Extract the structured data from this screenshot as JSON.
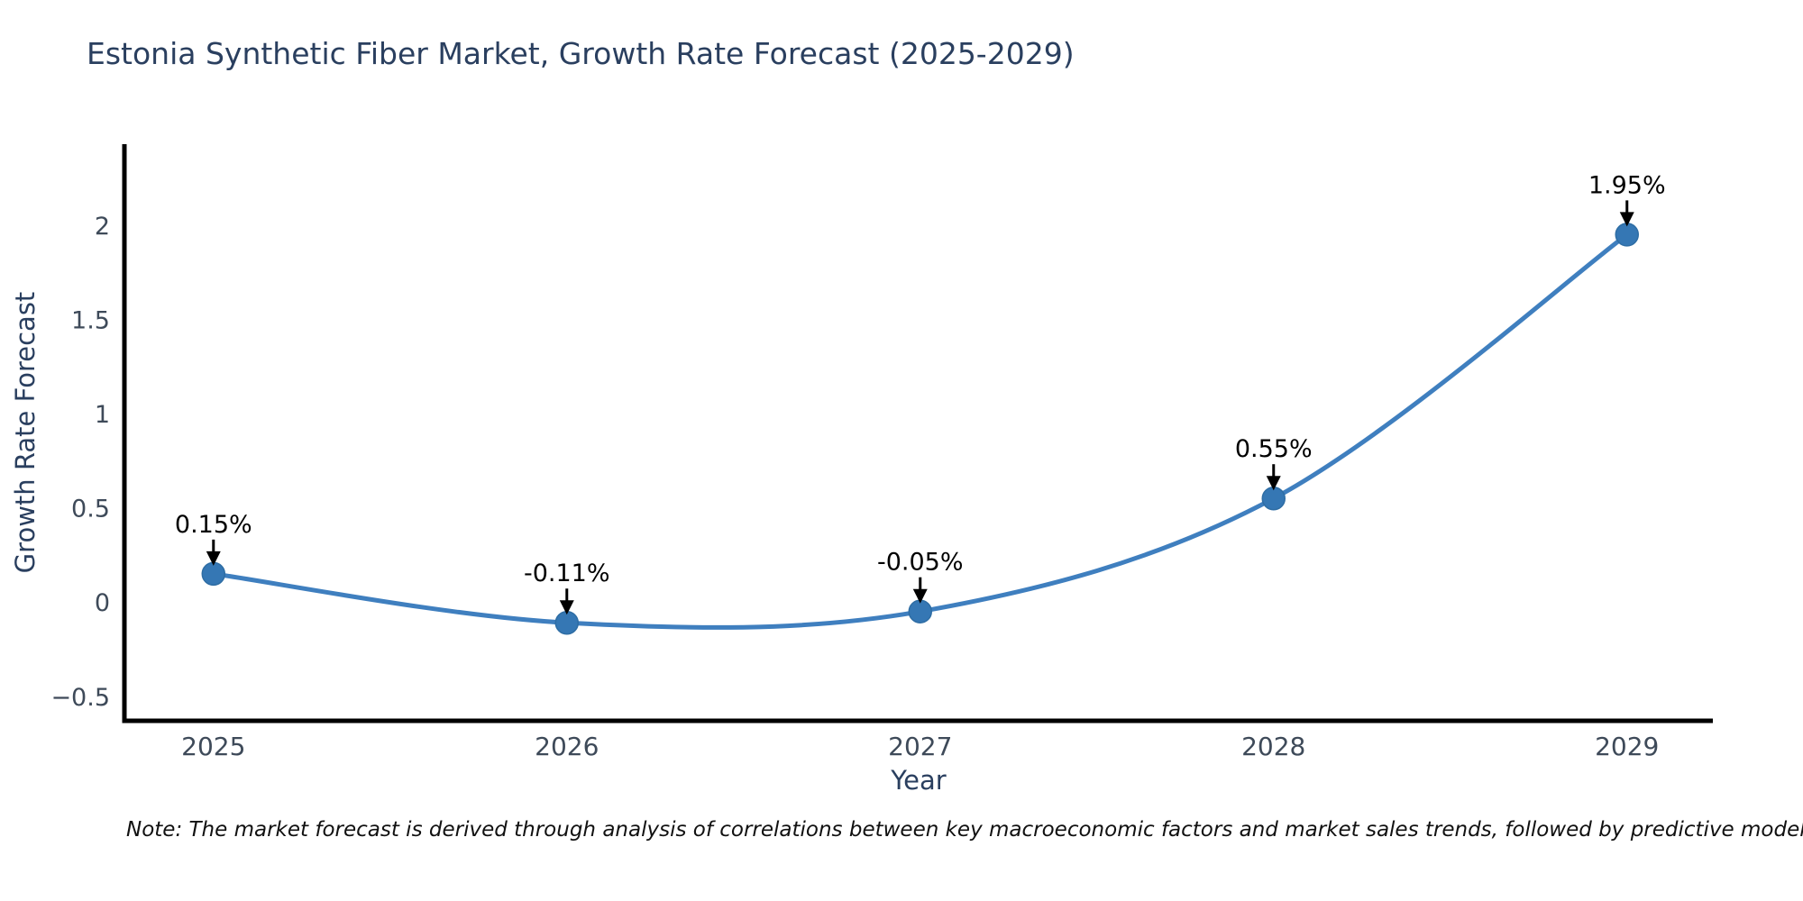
{
  "title": "Estonia Synthetic Fiber Market, Growth Rate Forecast (2025-2029)",
  "note": "Note: The market forecast is derived through analysis of correlations between key macroeconomic factors and market sales trends, followed by predictive modeling to project future sales.",
  "colors": {
    "background": "#ffffff",
    "line": "#3f7fbf",
    "marker_fill": "#3577b4",
    "marker_edge": "#2e6da4",
    "axis_line": "#000000",
    "title_text": "#2a3f5f",
    "tick_text": "#3e4a59",
    "axis_title_text": "#2a3f5f",
    "annotation_text": "#000000",
    "arrow": "#000000"
  },
  "chart_data": {
    "type": "line",
    "line_shape": "spline",
    "markers": true,
    "grid": false,
    "title": "Estonia Synthetic Fiber Market, Growth Rate Forecast (2025-2029)",
    "xlabel": "Year",
    "ylabel": "Growth Rate Forecast",
    "x": [
      2025,
      2026,
      2027,
      2028,
      2029
    ],
    "y": [
      0.15,
      -0.11,
      -0.05,
      0.55,
      1.95
    ],
    "point_labels": [
      "0.15%",
      "-0.11%",
      "-0.05%",
      "0.55%",
      "1.95%"
    ],
    "x_tick_labels": [
      "2025",
      "2026",
      "2027",
      "2028",
      "2029"
    ],
    "y_ticks": [
      2,
      1.5,
      1,
      0.5,
      0,
      -0.5
    ],
    "y_tick_labels": [
      "2",
      "1.5",
      "1",
      "0.5",
      "0",
      "−0.5"
    ],
    "xlim": [
      2024.748,
      2029.243
    ],
    "ylim": [
      -0.63,
      2.43
    ],
    "legend": "none",
    "annotations_have_arrows": true
  }
}
